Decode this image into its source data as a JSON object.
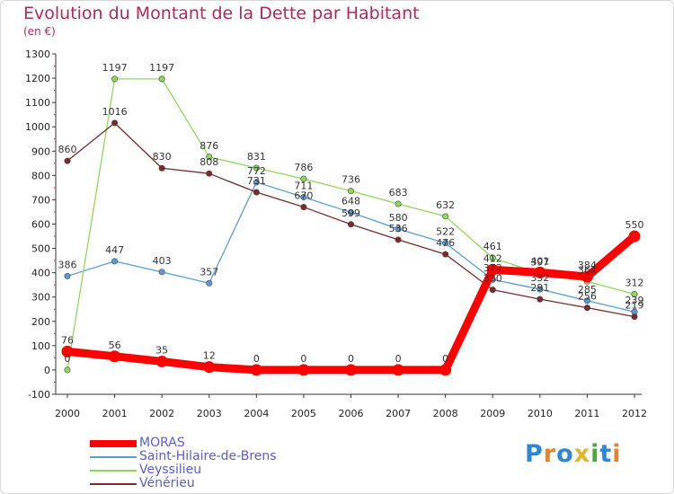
{
  "title": "Evolution du Montant de la Dette par Habitant",
  "subtitle": "(en €)",
  "logo": "Proxiti",
  "chart_data": {
    "type": "line",
    "title": "Evolution du Montant de la Dette par Habitant",
    "ylabel": "(en €)",
    "xlabel": "",
    "x": [
      "2000",
      "2001",
      "2002",
      "2003",
      "2004",
      "2005",
      "2006",
      "2007",
      "2008",
      "2009",
      "2010",
      "2011",
      "2012"
    ],
    "ylim": [
      -100,
      1300
    ],
    "yticks": [
      -100,
      0,
      100,
      200,
      300,
      400,
      500,
      600,
      700,
      800,
      900,
      1000,
      1100,
      1200,
      1300
    ],
    "grid": false,
    "legend_position": "bottom-left",
    "series": [
      {
        "name": "MORAS",
        "color": "#ff0000",
        "values": [
          76,
          56,
          35,
          12,
          0,
          0,
          0,
          0,
          0,
          412,
          401,
          384,
          550
        ]
      },
      {
        "name": "Saint-Hilaire-de-Brens",
        "color": "#5b9bd5",
        "values": [
          386,
          447,
          403,
          357,
          772,
          711,
          648,
          580,
          522,
          372,
          332,
          285,
          239
        ]
      },
      {
        "name": "Veyssilieu",
        "color": "#8fd85a",
        "values": [
          0,
          1197,
          1197,
          876,
          831,
          786,
          736,
          683,
          632,
          461,
          397,
          364,
          312
        ]
      },
      {
        "name": "Vénérieu",
        "color": "#7a2a2a",
        "values": [
          860,
          1016,
          830,
          808,
          731,
          670,
          599,
          536,
          476,
          330,
          291,
          256,
          219
        ]
      }
    ]
  }
}
